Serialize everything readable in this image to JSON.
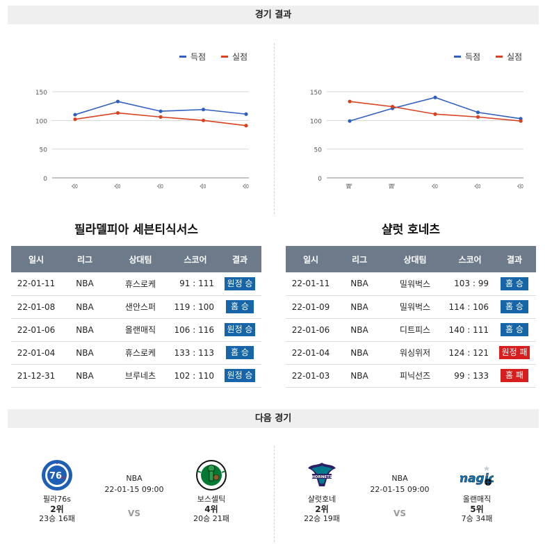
{
  "sections": {
    "results_title": "경기 결과",
    "next_title": "다음 경기"
  },
  "legend": {
    "scored": "득점",
    "conceded": "실점"
  },
  "colors": {
    "scored": "#2f5fbf",
    "conceded": "#d8401f",
    "win": "#1565a8",
    "lose": "#d61e1e"
  },
  "chart_data": [
    {
      "type": "line",
      "categories": [
        "승",
        "승",
        "승",
        "승",
        "승"
      ],
      "series": [
        {
          "name": "득점",
          "values": [
            110,
            133,
            116,
            119,
            111
          ]
        },
        {
          "name": "실점",
          "values": [
            102,
            113,
            106,
            100,
            91
          ]
        }
      ],
      "yticks": [
        0,
        50,
        100,
        150
      ],
      "ylim": [
        0,
        150
      ],
      "legend_position": "top-right",
      "grid": true
    },
    {
      "type": "line",
      "categories": [
        "패",
        "패",
        "승",
        "승",
        "승"
      ],
      "series": [
        {
          "name": "득점",
          "values": [
            99,
            121,
            140,
            114,
            103
          ]
        },
        {
          "name": "실점",
          "values": [
            133,
            124,
            111,
            106,
            99
          ]
        }
      ],
      "yticks": [
        0,
        50,
        100,
        150
      ],
      "ylim": [
        0,
        150
      ],
      "legend_position": "top-right",
      "grid": true
    }
  ],
  "tables": [
    {
      "team": "필라델피아 세븐티식서스",
      "headers": [
        "일시",
        "리그",
        "상대팀",
        "스코어",
        "결과"
      ],
      "rows": [
        {
          "date": "22-01-11",
          "league": "NBA",
          "opponent": "휴스로케",
          "score": "91 : 111",
          "result": "원정 승",
          "win": true
        },
        {
          "date": "22-01-08",
          "league": "NBA",
          "opponent": "샌안스퍼",
          "score": "119 : 100",
          "result": "홈 승",
          "win": true
        },
        {
          "date": "22-01-06",
          "league": "NBA",
          "opponent": "올랜매직",
          "score": "106 : 116",
          "result": "원정 승",
          "win": true
        },
        {
          "date": "22-01-04",
          "league": "NBA",
          "opponent": "휴스로케",
          "score": "133 : 113",
          "result": "홈 승",
          "win": true
        },
        {
          "date": "21-12-31",
          "league": "NBA",
          "opponent": "브루네츠",
          "score": "102 : 110",
          "result": "원정 승",
          "win": true
        }
      ]
    },
    {
      "team": "샬럿 호네츠",
      "headers": [
        "일시",
        "리그",
        "상대팀",
        "스코어",
        "결과"
      ],
      "rows": [
        {
          "date": "22-01-11",
          "league": "NBA",
          "opponent": "밀워벅스",
          "score": "103 : 99",
          "result": "홈 승",
          "win": true
        },
        {
          "date": "22-01-09",
          "league": "NBA",
          "opponent": "밀워벅스",
          "score": "114 : 106",
          "result": "홈 승",
          "win": true
        },
        {
          "date": "22-01-06",
          "league": "NBA",
          "opponent": "디트피스",
          "score": "140 : 111",
          "result": "홈 승",
          "win": true
        },
        {
          "date": "22-01-04",
          "league": "NBA",
          "opponent": "워싱위저",
          "score": "124 : 121",
          "result": "원정 패",
          "win": false
        },
        {
          "date": "22-01-03",
          "league": "NBA",
          "opponent": "피닉선즈",
          "score": "99 : 133",
          "result": "홈 패",
          "win": false
        }
      ]
    }
  ],
  "next_games": [
    {
      "league": "NBA",
      "datetime": "22-01-15 09:00",
      "vs": "VS",
      "home": {
        "name": "필라76s",
        "rank": "2위",
        "record": "23승 16패",
        "logo": "sixers-logo"
      },
      "away": {
        "name": "보스셀틱",
        "rank": "4위",
        "record": "20승 21패",
        "logo": "celtics-logo"
      }
    },
    {
      "league": "NBA",
      "datetime": "22-01-15 09:00",
      "vs": "VS",
      "home": {
        "name": "샬럿호네",
        "rank": "2위",
        "record": "22승 19패",
        "logo": "hornets-logo"
      },
      "away": {
        "name": "올랜매직",
        "rank": "5위",
        "record": "7승 34패",
        "logo": "magic-logo"
      }
    }
  ]
}
